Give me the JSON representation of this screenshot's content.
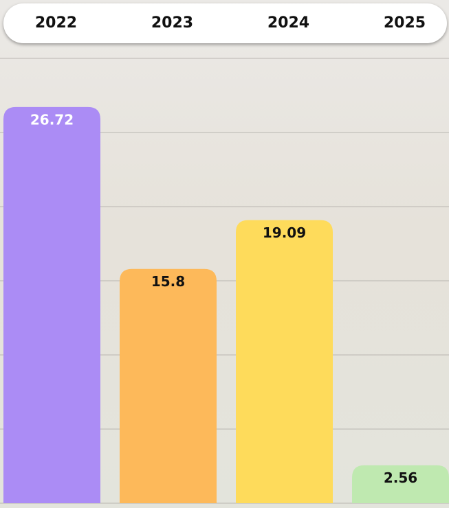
{
  "chart_data": {
    "type": "bar",
    "categories": [
      "2022",
      "2023",
      "2024",
      "2025"
    ],
    "values": [
      26.72,
      15.8,
      19.09,
      2.56
    ],
    "colors": [
      "#ab8cf5",
      "#fdb95a",
      "#fedb5b",
      "#bfe9b0"
    ],
    "label_colors": [
      "#ffffff",
      "#111111",
      "#111111",
      "#111111"
    ],
    "ylim": [
      0,
      30
    ],
    "yticks": [
      0,
      5,
      10,
      15,
      20,
      25,
      30
    ],
    "grid": true
  }
}
